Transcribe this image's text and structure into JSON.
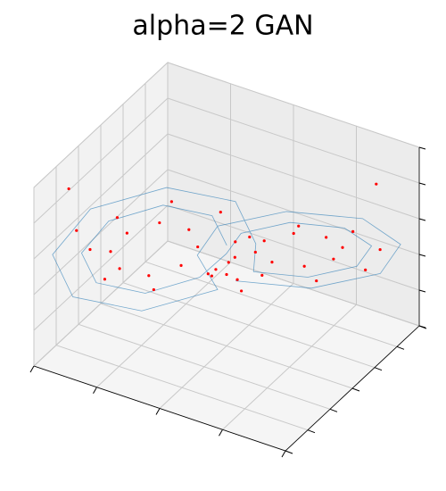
{
  "chart_data": {
    "type": "scatter3d",
    "title": "alpha=2 GAN",
    "xlim": [
      -20,
      20
    ],
    "ylim": [
      -30,
      30
    ],
    "zlim": [
      0,
      50
    ],
    "xticks": [
      -20,
      -10,
      0,
      10,
      20
    ],
    "yticks": [
      -30,
      -20,
      -10,
      0,
      10,
      20,
      30
    ],
    "zticks": [
      0,
      10,
      20,
      30,
      40,
      50
    ],
    "grid": true,
    "series": [
      {
        "mode": "line",
        "color": "#1f77b4",
        "x": [
          -0.5,
          -2.8,
          -8.5,
          -14.2,
          -16.5,
          -14.2,
          -8.5,
          -2.8,
          0.5,
          2.8,
          8.5,
          14.2,
          16.5,
          14.2,
          8.5,
          2.8,
          2.7,
          -0.5,
          -8.5,
          -16.5,
          -19.7,
          -16.5,
          -8.5,
          -0.5,
          -2.7,
          0.5,
          8.5,
          16.5,
          19.7,
          16.5,
          8.5,
          0.5
        ],
        "y": [
          1.5,
          1.4,
          -4.5,
          -12.8,
          -18.5,
          -18.4,
          -12.5,
          -4.2,
          -1.5,
          -1.4,
          4.5,
          12.8,
          18.5,
          18.4,
          12.5,
          4.2,
          5.5,
          5.4,
          -2.9,
          -14.5,
          -22.5,
          -22.4,
          -14.1,
          -2.6,
          -5.5,
          -5.4,
          2.9,
          14.5,
          22.5,
          22.4,
          14.1,
          2.6
        ],
        "z": [
          27,
          34,
          37,
          34,
          27,
          20,
          17,
          20,
          27,
          34,
          37,
          34,
          27,
          20,
          17,
          20,
          27,
          37,
          41,
          37,
          27,
          17,
          13,
          17,
          27,
          37,
          41,
          37,
          27,
          17,
          13,
          17
        ]
      },
      {
        "mode": "scatter",
        "color": "#ff0000",
        "x": [
          -3.7,
          -5.1,
          -8.5,
          -11.9,
          -13.3,
          -11.9,
          -8.5,
          -5.1,
          3.7,
          5.1,
          8.5,
          11.9,
          13.3,
          11.9,
          8.5,
          5.1,
          0,
          1,
          -1,
          2,
          -2,
          0.5,
          0.5,
          -1.8,
          -7.5,
          -13.2,
          -15.5,
          -13.2,
          -7.5,
          -1.8,
          1.5,
          3.8,
          9.5,
          15.2,
          17.5,
          15.2,
          9.5,
          3.8,
          -18,
          -15,
          16
        ],
        "y": [
          -2.5,
          -2.5,
          -6.1,
          -11.1,
          -14.5,
          -14.4,
          -10.9,
          -6.0,
          2.5,
          2.5,
          6.1,
          11.1,
          14.5,
          14.4,
          10.9,
          6.0,
          0,
          2,
          -2,
          1,
          -1,
          -0.5,
          2.5,
          2.4,
          -3.5,
          -11.8,
          -17.5,
          -17.4,
          -11.5,
          -3.2,
          -0.5,
          -0.4,
          5.5,
          13.8,
          19.5,
          19.4,
          13.5,
          5.2,
          -20,
          -25,
          22
        ],
        "z": [
          27,
          31,
          33,
          31,
          27,
          23,
          21,
          23,
          27,
          31,
          33,
          31,
          27,
          23,
          21,
          23,
          20,
          18,
          22,
          16,
          19,
          24,
          28,
          35,
          38,
          35,
          28,
          21,
          18,
          21,
          26,
          33,
          36,
          33,
          26,
          19,
          16,
          19,
          45,
          38,
          42
        ]
      }
    ]
  }
}
